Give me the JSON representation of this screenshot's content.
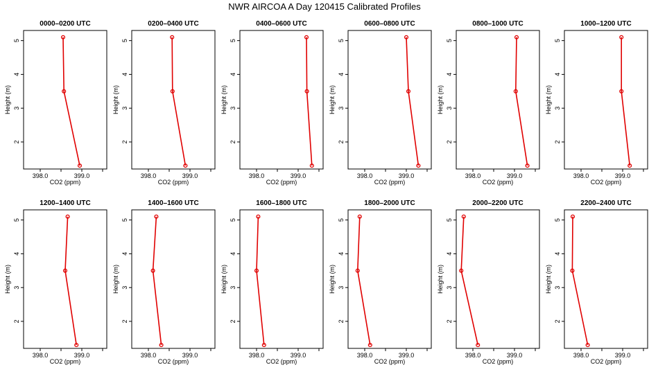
{
  "title": "NWR AIRCOA A  Day 120415  Calibrated Profiles",
  "colors": {
    "series": "#e00000",
    "axis": "#000000",
    "background": "#ffffff"
  },
  "chart_data": {
    "type": "line",
    "grid": false,
    "xlabel": "CO2 (ppm)",
    "ylabel": "Height (m)",
    "xlim": [
      397.6,
      399.6
    ],
    "ylim": [
      1.2,
      5.3
    ],
    "xticks": [
      398.0,
      398.5,
      399.0,
      399.5
    ],
    "xtick_labels": [
      "398.0",
      "",
      "399.0",
      ""
    ],
    "yticks": [
      2,
      3,
      4,
      5
    ],
    "ytick_labels": [
      "2",
      "3",
      "4",
      "5"
    ],
    "heights": [
      1.3,
      3.5,
      5.1
    ],
    "panels": [
      {
        "title": "0000–0200 UTC",
        "co2": [
          398.95,
          398.57,
          398.55
        ]
      },
      {
        "title": "0200–0400 UTC",
        "co2": [
          398.89,
          398.58,
          398.57
        ]
      },
      {
        "title": "0400–0600 UTC",
        "co2": [
          399.33,
          399.21,
          399.2
        ]
      },
      {
        "title": "0600–0800 UTC",
        "co2": [
          399.29,
          399.05,
          399.0
        ]
      },
      {
        "title": "0800–1000 UTC",
        "co2": [
          399.31,
          399.03,
          399.05
        ]
      },
      {
        "title": "1000–1200 UTC",
        "co2": [
          399.17,
          398.97,
          398.97
        ]
      },
      {
        "title": "1200–1400 UTC",
        "co2": [
          398.87,
          398.6,
          398.66
        ]
      },
      {
        "title": "1400–1600 UTC",
        "co2": [
          398.31,
          398.11,
          398.19
        ]
      },
      {
        "title": "1600–1800 UTC",
        "co2": [
          398.18,
          398.0,
          398.04
        ]
      },
      {
        "title": "1800–2000 UTC",
        "co2": [
          398.13,
          397.83,
          397.88
        ]
      },
      {
        "title": "2000–2200 UTC",
        "co2": [
          398.12,
          397.72,
          397.78
        ]
      },
      {
        "title": "2200–2400 UTC",
        "co2": [
          398.16,
          397.79,
          397.8
        ]
      }
    ]
  }
}
